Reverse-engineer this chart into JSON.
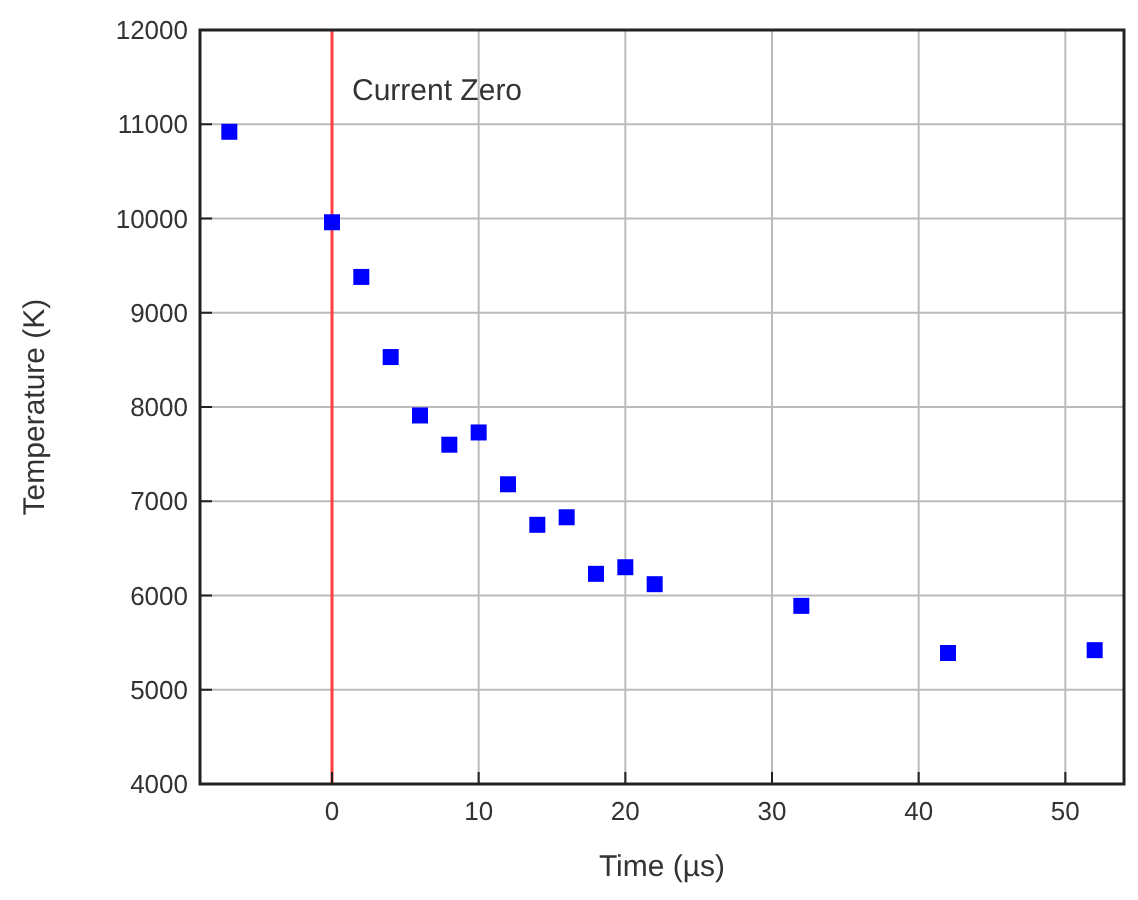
{
  "chart_data": {
    "type": "scatter",
    "xlabel": "Time (µs)",
    "ylabel": "Temperature (K)",
    "x": [
      -7,
      0,
      2,
      4,
      6,
      8,
      10,
      12,
      14,
      16,
      18,
      20,
      22,
      32,
      42,
      52
    ],
    "series": [
      {
        "color": "#0000ff",
        "values": [
          10920,
          9960,
          9380,
          8530,
          7910,
          7600,
          7730,
          7180,
          6750,
          6830,
          6230,
          6300,
          6120,
          5890,
          5390,
          5420
        ]
      }
    ],
    "xlim": [
      -9,
      54
    ],
    "xticks": [
      0,
      10,
      20,
      30,
      40,
      50
    ],
    "ylim": [
      4000,
      12000
    ],
    "yticks": [
      4000,
      5000,
      6000,
      7000,
      8000,
      9000,
      10000,
      11000,
      12000
    ],
    "grid": true,
    "marker": "square",
    "ref_lines": [
      {
        "axis": "x",
        "value": 0,
        "label": "Current Zero",
        "color": "#ff4040"
      }
    ]
  }
}
